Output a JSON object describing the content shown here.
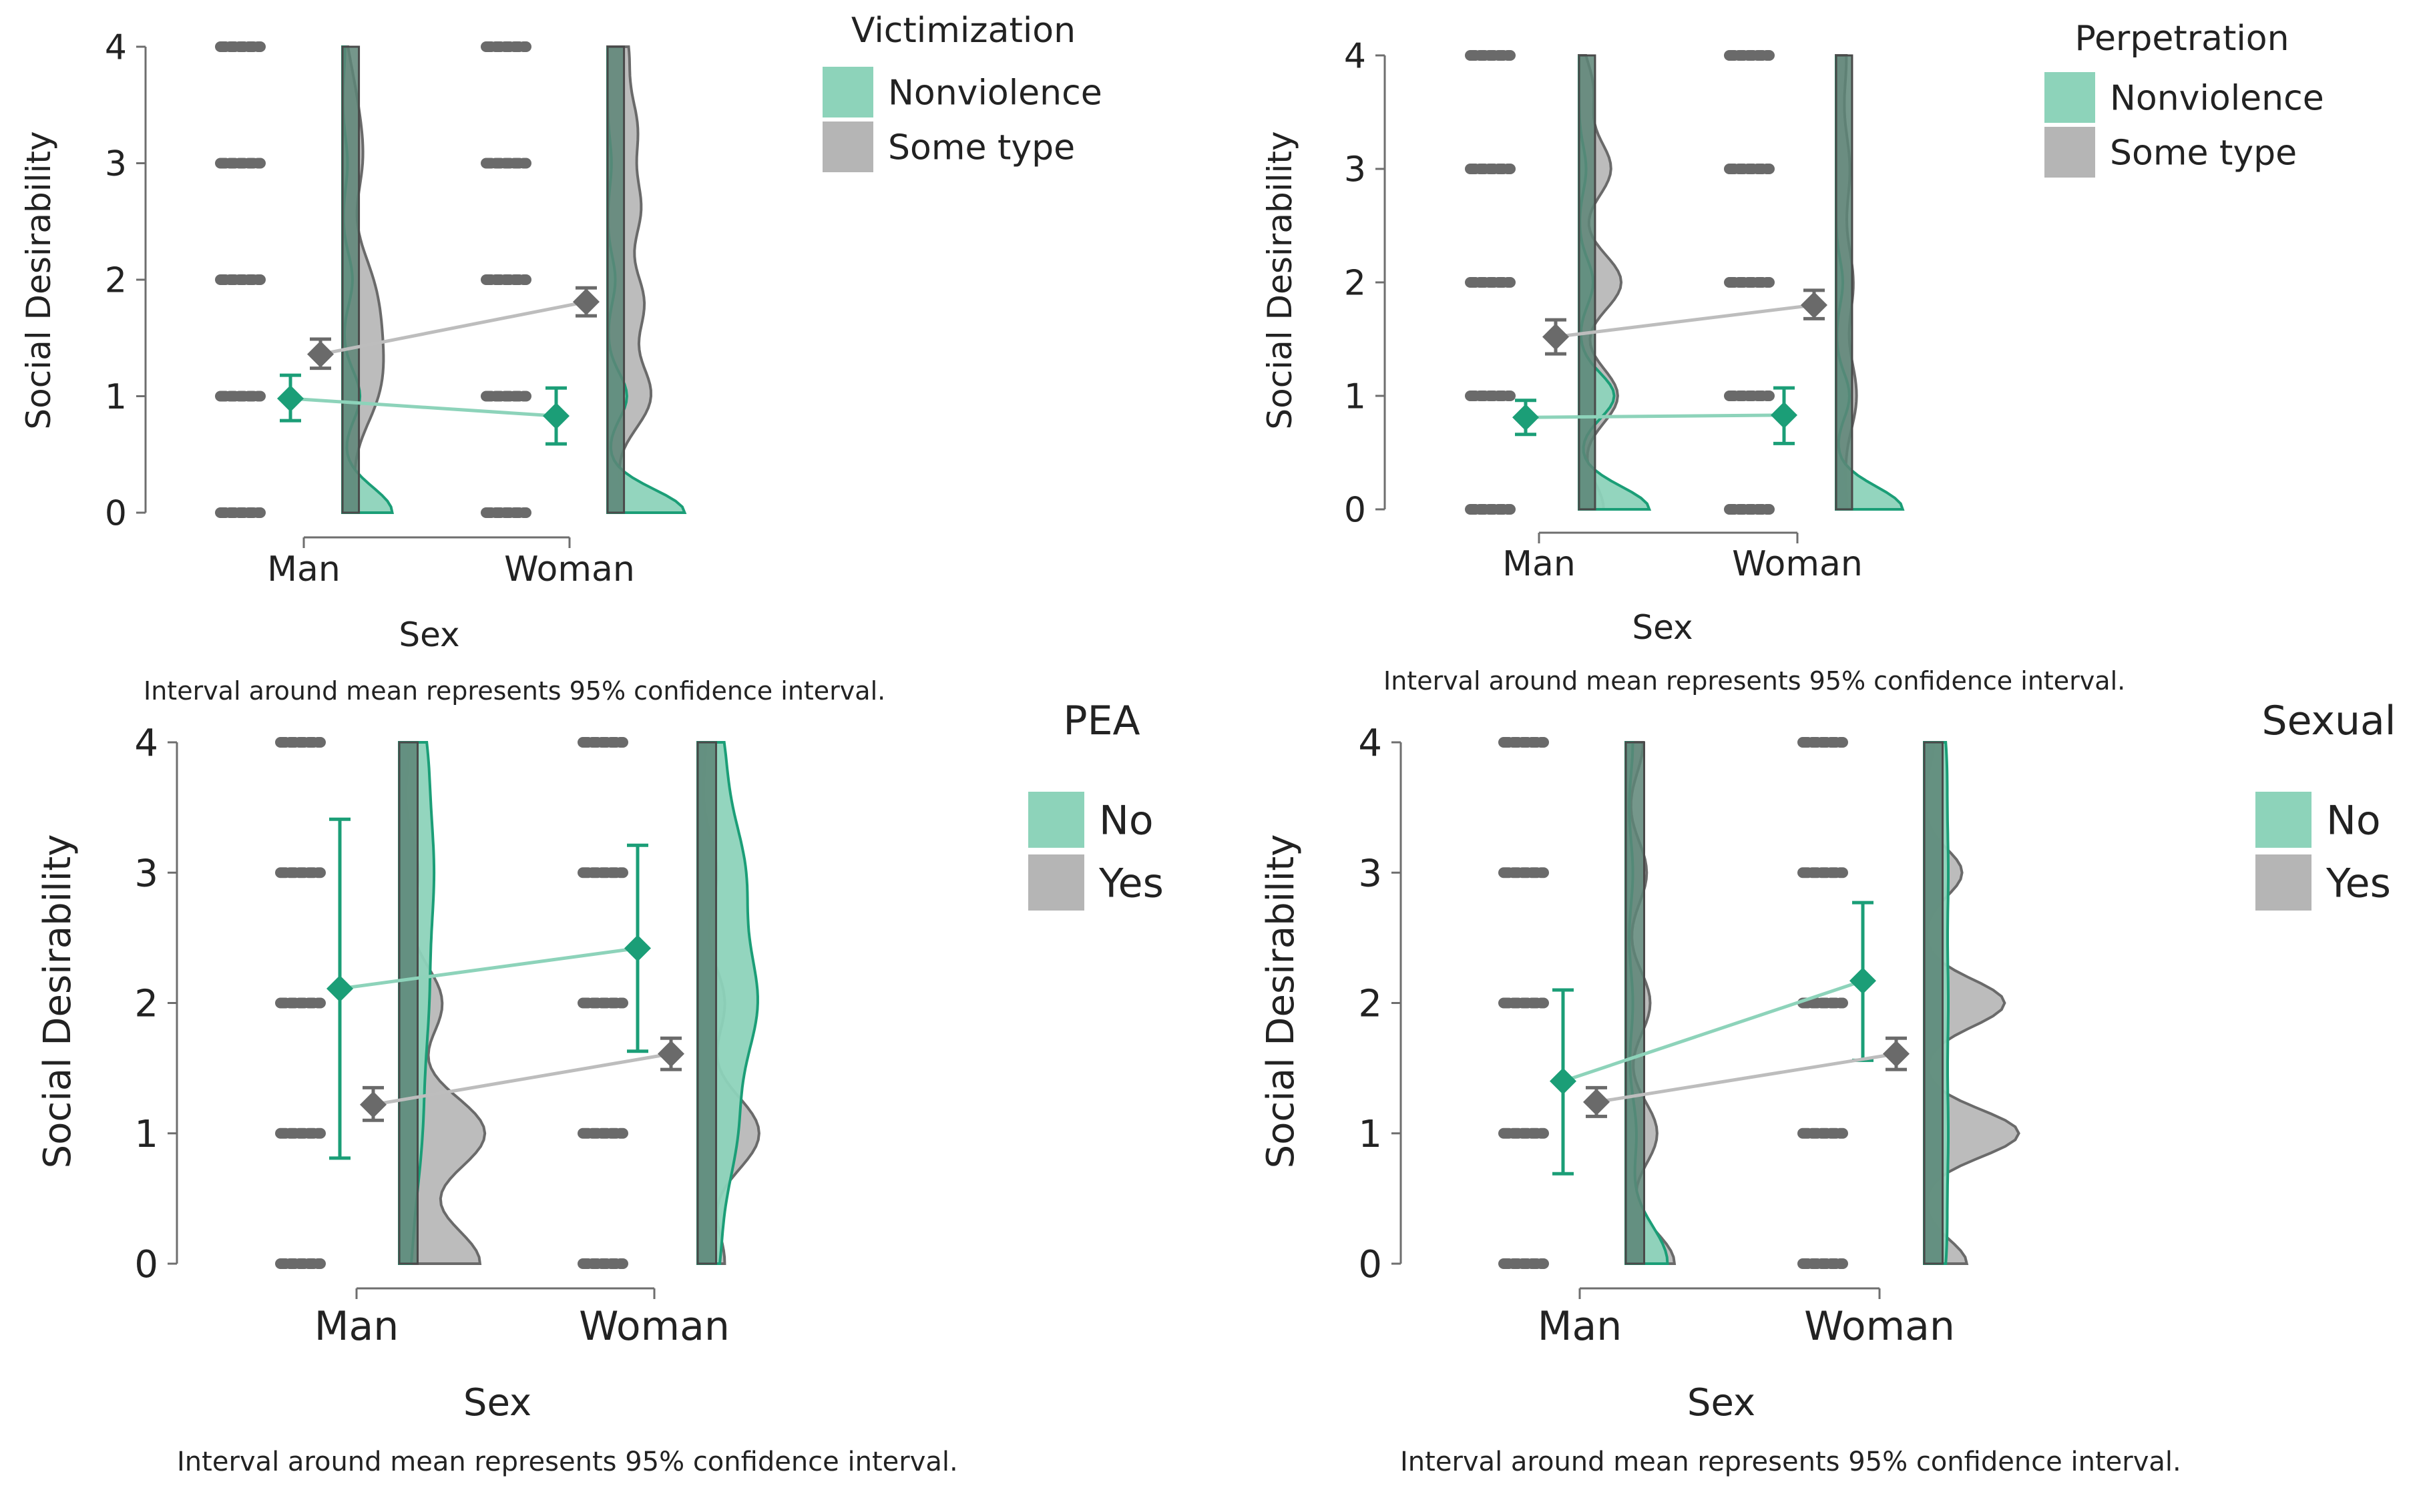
{
  "colors": {
    "green": "#1b9e77",
    "green_fill": "#8dd3ba",
    "gray": "#6a6a6a",
    "gray_fill": "#b5b5b5",
    "gray_line": "#bdbdbd",
    "green_line": "#8dd3ba",
    "dark_fill": "#5d8577",
    "axis": "#6e6e6e"
  },
  "chart_data": [
    {
      "type": "raincloud",
      "legend_title": "Victimization",
      "legend_labels": [
        "Nonviolence",
        "Some type"
      ],
      "ylabel": "Social Desirability",
      "xlabel": "Sex",
      "categories": [
        "Man",
        "Woman"
      ],
      "yticks": [
        "0",
        "1",
        "2",
        "3",
        "4"
      ],
      "ylim": [
        0,
        4
      ],
      "caption": "Interval around mean represents 95% confidence interval.",
      "series": [
        {
          "name": "Nonviolence",
          "means": [
            0.98,
            0.83
          ],
          "ci_low": [
            0.79,
            0.59
          ],
          "ci_high": [
            1.18,
            1.07
          ]
        },
        {
          "name": "Some type",
          "means": [
            1.36,
            1.81
          ],
          "ci_low": [
            1.24,
            1.69
          ],
          "ci_high": [
            1.49,
            1.93
          ]
        }
      ],
      "density_max": [
        0.4,
        0.62
      ]
    },
    {
      "type": "raincloud",
      "legend_title": "Perpetration",
      "legend_labels": [
        "Nonviolence",
        "Some type"
      ],
      "ylabel": "Social Desirability",
      "xlabel": "Sex",
      "categories": [
        "Man",
        "Woman"
      ],
      "yticks": [
        "0",
        "1",
        "2",
        "3",
        "4"
      ],
      "ylim": [
        0,
        4
      ],
      "caption": "Interval around mean represents 95% confidence interval.",
      "series": [
        {
          "name": "Nonviolence",
          "means": [
            0.81,
            0.83
          ],
          "ci_low": [
            0.66,
            0.58
          ],
          "ci_high": [
            0.96,
            1.07
          ]
        },
        {
          "name": "Some type",
          "means": [
            1.52,
            1.8
          ],
          "ci_low": [
            1.37,
            1.68
          ],
          "ci_high": [
            1.67,
            1.93
          ]
        }
      ],
      "density_max": [
        0.58,
        0.55
      ]
    },
    {
      "type": "raincloud",
      "legend_title": "PEA",
      "legend_labels": [
        "No",
        "Yes"
      ],
      "ylabel": "Social Desirability",
      "xlabel": "Sex",
      "categories": [
        "Man",
        "Woman"
      ],
      "yticks": [
        "0",
        "1",
        "2",
        "3",
        "4"
      ],
      "ylim": [
        0,
        4
      ],
      "caption": "Interval around mean represents 95% confidence interval.",
      "series": [
        {
          "name": "No",
          "means": [
            2.11,
            2.42
          ],
          "ci_low": [
            0.81,
            1.63
          ],
          "ci_high": [
            3.41,
            3.21
          ]
        },
        {
          "name": "Yes",
          "means": [
            1.22,
            1.61
          ],
          "ci_low": [
            1.1,
            1.49
          ],
          "ci_high": [
            1.35,
            1.73
          ]
        }
      ],
      "density_max": [
        0.68,
        0.55
      ]
    },
    {
      "type": "raincloud",
      "legend_title": "Sexual",
      "legend_labels": [
        "No",
        "Yes"
      ],
      "ylabel": "Social Desirability",
      "xlabel": "Sex",
      "categories": [
        "Man",
        "Woman"
      ],
      "yticks": [
        "0",
        "1",
        "2",
        "3",
        "4"
      ],
      "ylim": [
        0,
        4
      ],
      "caption": "Interval around mean represents 95% confidence interval.",
      "series": [
        {
          "name": "No",
          "means": [
            1.4,
            2.17
          ],
          "ci_low": [
            0.69,
            1.56
          ],
          "ci_high": [
            2.1,
            2.77
          ]
        },
        {
          "name": "Yes",
          "means": [
            1.24,
            1.61
          ],
          "ci_low": [
            1.13,
            1.49
          ],
          "ci_high": [
            1.35,
            1.73
          ]
        }
      ],
      "density_max": [
        0.5,
        0.68
      ]
    }
  ]
}
